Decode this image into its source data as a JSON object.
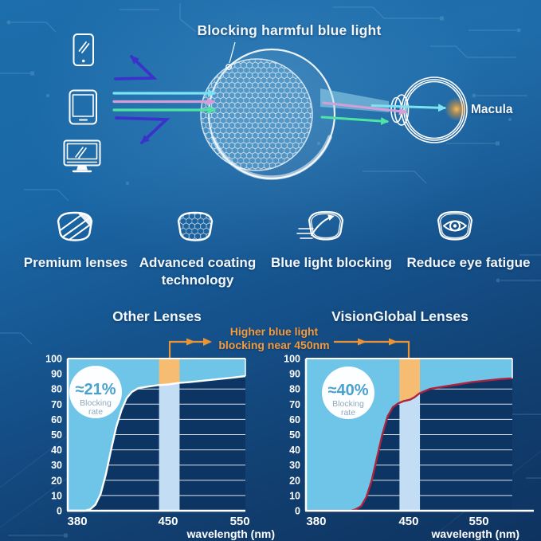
{
  "header": {
    "title": "Blocking harmful blue light",
    "macula_label": "Macula"
  },
  "devices": [
    {
      "icon": "smartphone-icon"
    },
    {
      "icon": "tablet-icon"
    },
    {
      "icon": "monitor-icon"
    }
  ],
  "light_rays": {
    "reflected_blue": "#3b32cc",
    "cyan": "#7be3f2",
    "violet": "#d49fd6",
    "green": "#4ee5a4",
    "macula_glow": "#f5a623"
  },
  "features": [
    {
      "icon": "striped-lens-icon",
      "label": "Premium lenses"
    },
    {
      "icon": "honeycomb-coating-lens-icon",
      "label": "Advanced coating technology"
    },
    {
      "icon": "ray-deflecting-lens-icon",
      "label": "Blue light blocking"
    },
    {
      "icon": "eye-in-lens-icon",
      "label": "Reduce eye fatigue"
    }
  ],
  "comparison": {
    "annotation_line1": "Higher blue light",
    "annotation_line2": "blocking near 450nm",
    "annotation_color": "#ec9334"
  },
  "chart_data": [
    {
      "type": "area",
      "title": "Other Lenses",
      "badge_value": "≈21%",
      "badge_label_line1": "Blocking",
      "badge_label_line2": "rate",
      "xlabel": "wavelength (nm)",
      "x_ticks": [
        380,
        450,
        550
      ],
      "y_ticks": [
        0,
        10,
        20,
        30,
        40,
        50,
        60,
        70,
        80,
        90,
        100
      ],
      "ylim": [
        0,
        100
      ],
      "xlim": [
        372,
        560
      ],
      "highlight_band_nm": [
        443,
        466
      ],
      "grid": true,
      "series": [
        {
          "name": "light transmission curve",
          "points": [
            [
              372,
              0
            ],
            [
              386,
              0
            ],
            [
              390,
              1
            ],
            [
              394,
              4
            ],
            [
              398,
              11
            ],
            [
              402,
              24
            ],
            [
              406,
              40
            ],
            [
              410,
              55
            ],
            [
              414,
              66
            ],
            [
              418,
              74
            ],
            [
              422,
              78
            ],
            [
              427,
              80.5
            ],
            [
              434,
              81.5
            ],
            [
              442,
              82.5
            ],
            [
              450,
              83
            ],
            [
              465,
              84
            ],
            [
              480,
              84.5
            ],
            [
              500,
              85.5
            ],
            [
              520,
              86.5
            ],
            [
              540,
              87.5
            ],
            [
              560,
              88.5
            ]
          ]
        }
      ],
      "colors": {
        "plot_bg": "#0c3564",
        "area": "#6ec5e8",
        "band": "#c3def4",
        "band_blocked": "#f6bc72",
        "curve": "#ffffff",
        "badge_value_color": "#4aa0ce",
        "badge_label_color": "#8fa9bd"
      }
    },
    {
      "type": "area",
      "title": "VisionGlobal Lenses",
      "badge_value": "≈40%",
      "badge_label_line1": "Blocking",
      "badge_label_line2": "rate",
      "xlabel": "wavelength (nm)",
      "x_ticks": [
        380,
        450,
        550
      ],
      "y_ticks": [
        0,
        10,
        20,
        30,
        40,
        50,
        60,
        70,
        80,
        90,
        100
      ],
      "ylim": [
        0,
        100
      ],
      "xlim": [
        372,
        598
      ],
      "highlight_band_nm": [
        443,
        466
      ],
      "grid": true,
      "series": [
        {
          "name": "light transmission curve",
          "points": [
            [
              372,
              0
            ],
            [
              406,
              0
            ],
            [
              410,
              1
            ],
            [
              414,
              3
            ],
            [
              418,
              9
            ],
            [
              422,
              20
            ],
            [
              426,
              35
            ],
            [
              430,
              50
            ],
            [
              434,
              62
            ],
            [
              438,
              68
            ],
            [
              442,
              70.5
            ],
            [
              446,
              72
            ],
            [
              452,
              73
            ],
            [
              458,
              74.5
            ],
            [
              465,
              77
            ],
            [
              472,
              78.5
            ],
            [
              480,
              80
            ],
            [
              492,
              81
            ],
            [
              505,
              82
            ],
            [
              520,
              83
            ],
            [
              540,
              84.5
            ],
            [
              560,
              85.5
            ],
            [
              580,
              86.5
            ],
            [
              598,
              87
            ]
          ]
        }
      ],
      "colors": {
        "plot_bg": "#0c3564",
        "area": "#6ec5e8",
        "band": "#c3def4",
        "band_blocked": "#f6bc72",
        "curve": "#ad2440",
        "badge_value_color": "#4aa0ce",
        "badge_label_color": "#8fa9bd"
      }
    }
  ]
}
